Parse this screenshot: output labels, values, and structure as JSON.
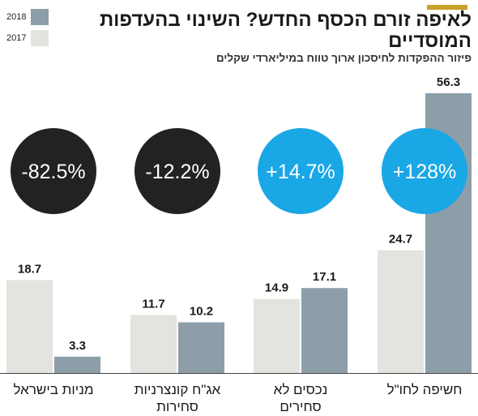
{
  "title": "לאיפה זורם הכסף החדש? השינוי בהעדפות המוסדיים",
  "subtitle": "פיזור ההפקדות לחיסכון ארוך טווח במיליארדי שקלים",
  "colors": {
    "accent": "#c9a227",
    "series_2017": "#e3e3df",
    "series_2018": "#8d9ea9",
    "circle_positive": "#1aa7e6",
    "circle_negative": "#222222"
  },
  "legend": [
    {
      "label": "2018",
      "color": "#8d9ea9"
    },
    {
      "label": "2017",
      "color": "#e3e3df"
    }
  ],
  "chart_data": {
    "type": "bar",
    "title": "לאיפה זורם הכסף החדש? השינוי בהעדפות המוסדיים",
    "subtitle": "פיזור ההפקדות לחיסכון ארוך טווח במיליארדי שקלים",
    "categories": [
      [
        "מניות בישראל"
      ],
      [
        "אג\"ח קונצרניות",
        "סחירות"
      ],
      [
        "נכסים לא",
        "סחירים"
      ],
      [
        "חשיפה לחו\"ל"
      ]
    ],
    "series": [
      {
        "name": "2017",
        "values": [
          18.7,
          11.7,
          14.9,
          24.7
        ],
        "labels": [
          "18.7",
          "11.7",
          "14.9",
          "24.7"
        ]
      },
      {
        "name": "2018",
        "values": [
          3.3,
          10.2,
          17.1,
          56.3
        ],
        "labels": [
          "3.3",
          "10.2",
          "17.1",
          "56.3"
        ]
      }
    ],
    "changes": [
      "-82.5%",
      "-12.2%",
      "+14.7%",
      "+128%"
    ],
    "change_sign": [
      "negative",
      "negative",
      "positive",
      "positive"
    ],
    "ylim": [
      0,
      60
    ],
    "legend_position": "top-left",
    "grid": false
  }
}
